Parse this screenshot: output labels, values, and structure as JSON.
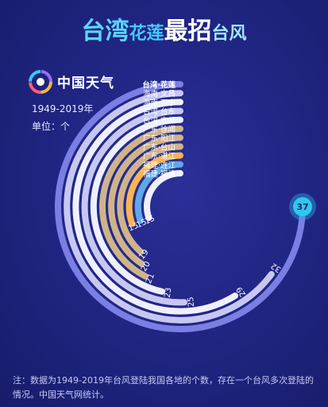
{
  "title": {
    "part1": "台湾",
    "part2": "花莲",
    "part3": "最招",
    "part4": "台风"
  },
  "brand": {
    "name": "中国天气",
    "years": "1949-2019年",
    "unit": "单位：个"
  },
  "colors": {
    "background": "#1f2480",
    "ring_outer": "#7b7fe3",
    "ring_light": "#c6c8f2",
    "ring_white": "#eef0ff",
    "ring_tan": "#cfb48a",
    "ring_orange": "#f7b653",
    "ring_blue": "#5fa8e8",
    "badge": "#31c6f0"
  },
  "chart_data": {
    "type": "bar",
    "layout": "radial",
    "categories": [
      "台湾·花莲",
      "海南·文昌",
      "海南·万宁",
      "台湾·台东",
      "台湾·宜兰",
      "广东·徐闻",
      "广东·阳江",
      "广东·台山",
      "广东·湛江",
      "福建·连江",
      "福建·福清"
    ],
    "values": [
      37,
      32,
      29,
      25,
      23,
      21,
      20,
      19,
      15,
      15,
      15
    ],
    "value_labels": [
      "37",
      "32",
      "29",
      "25",
      "23",
      "21",
      "20",
      "19",
      "15",
      "15",
      "15"
    ],
    "xlabel": "",
    "ylabel": "",
    "ylim": [
      0,
      37
    ]
  },
  "note": "注：数据为1949-2019年台风登陆我国各地的个数，存在一个台风多次登陆的情况。中国天气网统计。"
}
